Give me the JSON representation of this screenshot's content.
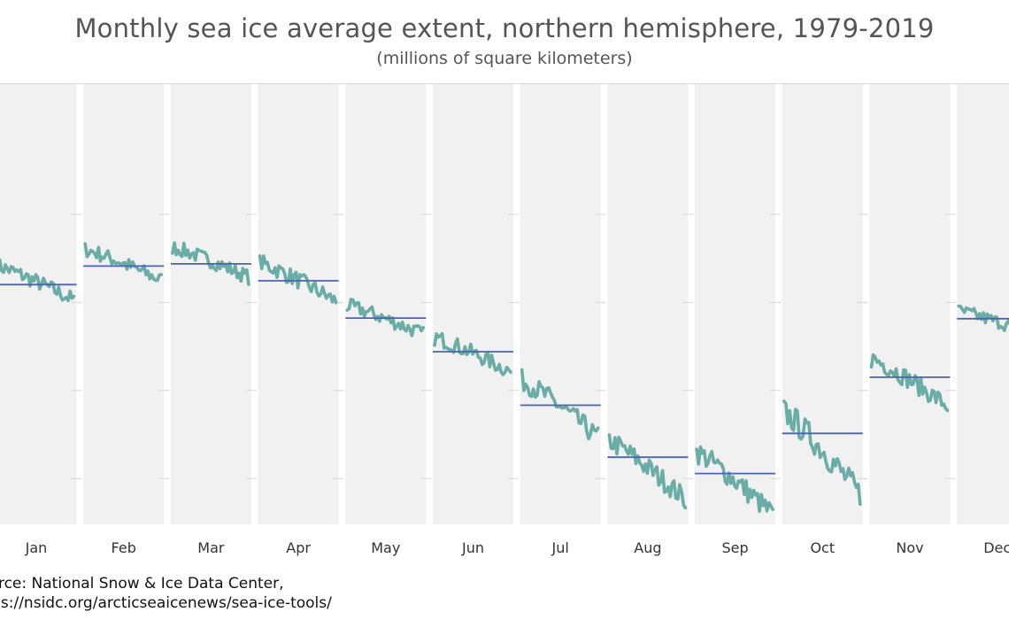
{
  "chart_data": {
    "type": "line",
    "title": "Monthly sea ice average extent, northern hemisphere, 1979-2019",
    "subtitle": "(millions of square kilometers)",
    "ylabel": "",
    "xlabel": "",
    "ylim": [
      4,
      18
    ],
    "grid": true,
    "legend": "none",
    "panel_color": "#f1f1f1",
    "line_color": "#6aaca6",
    "mean_color": "#4a63b4",
    "months": [
      {
        "label": "Jan",
        "mean": 14.81,
        "start": 15.65,
        "end": 14.1
      },
      {
        "label": "Feb",
        "mean": 15.65,
        "start": 16.4,
        "end": 15.0
      },
      {
        "label": "Mar",
        "mean": 15.75,
        "start": 16.5,
        "end": 15.15
      },
      {
        "label": "Apr",
        "mean": 14.98,
        "start": 15.8,
        "end": 14.05
      },
      {
        "label": "May",
        "mean": 13.29,
        "start": 13.85,
        "end": 12.55
      },
      {
        "label": "Jun",
        "mean": 11.76,
        "start": 12.4,
        "end": 10.85
      },
      {
        "label": "Jul",
        "mean": 9.33,
        "start": 10.45,
        "end": 7.85
      },
      {
        "label": "Aug",
        "mean": 6.97,
        "start": 7.7,
        "end": 5.05
      },
      {
        "label": "Sep",
        "mean": 6.23,
        "start": 7.2,
        "end": 4.36
      },
      {
        "label": "Oct",
        "mean": 8.05,
        "start": 9.0,
        "end": 5.25
      },
      {
        "label": "Nov",
        "mean": 10.6,
        "start": 11.45,
        "end": 9.3
      },
      {
        "label": "Dec",
        "mean": 13.26,
        "start": 13.6,
        "end": 12.55
      }
    ]
  },
  "caption": {
    "line1": "Source: National Snow & Ice Data Center,",
    "line2": "https://nsidc.org/arcticseaicenews/sea-ice-tools/"
  }
}
